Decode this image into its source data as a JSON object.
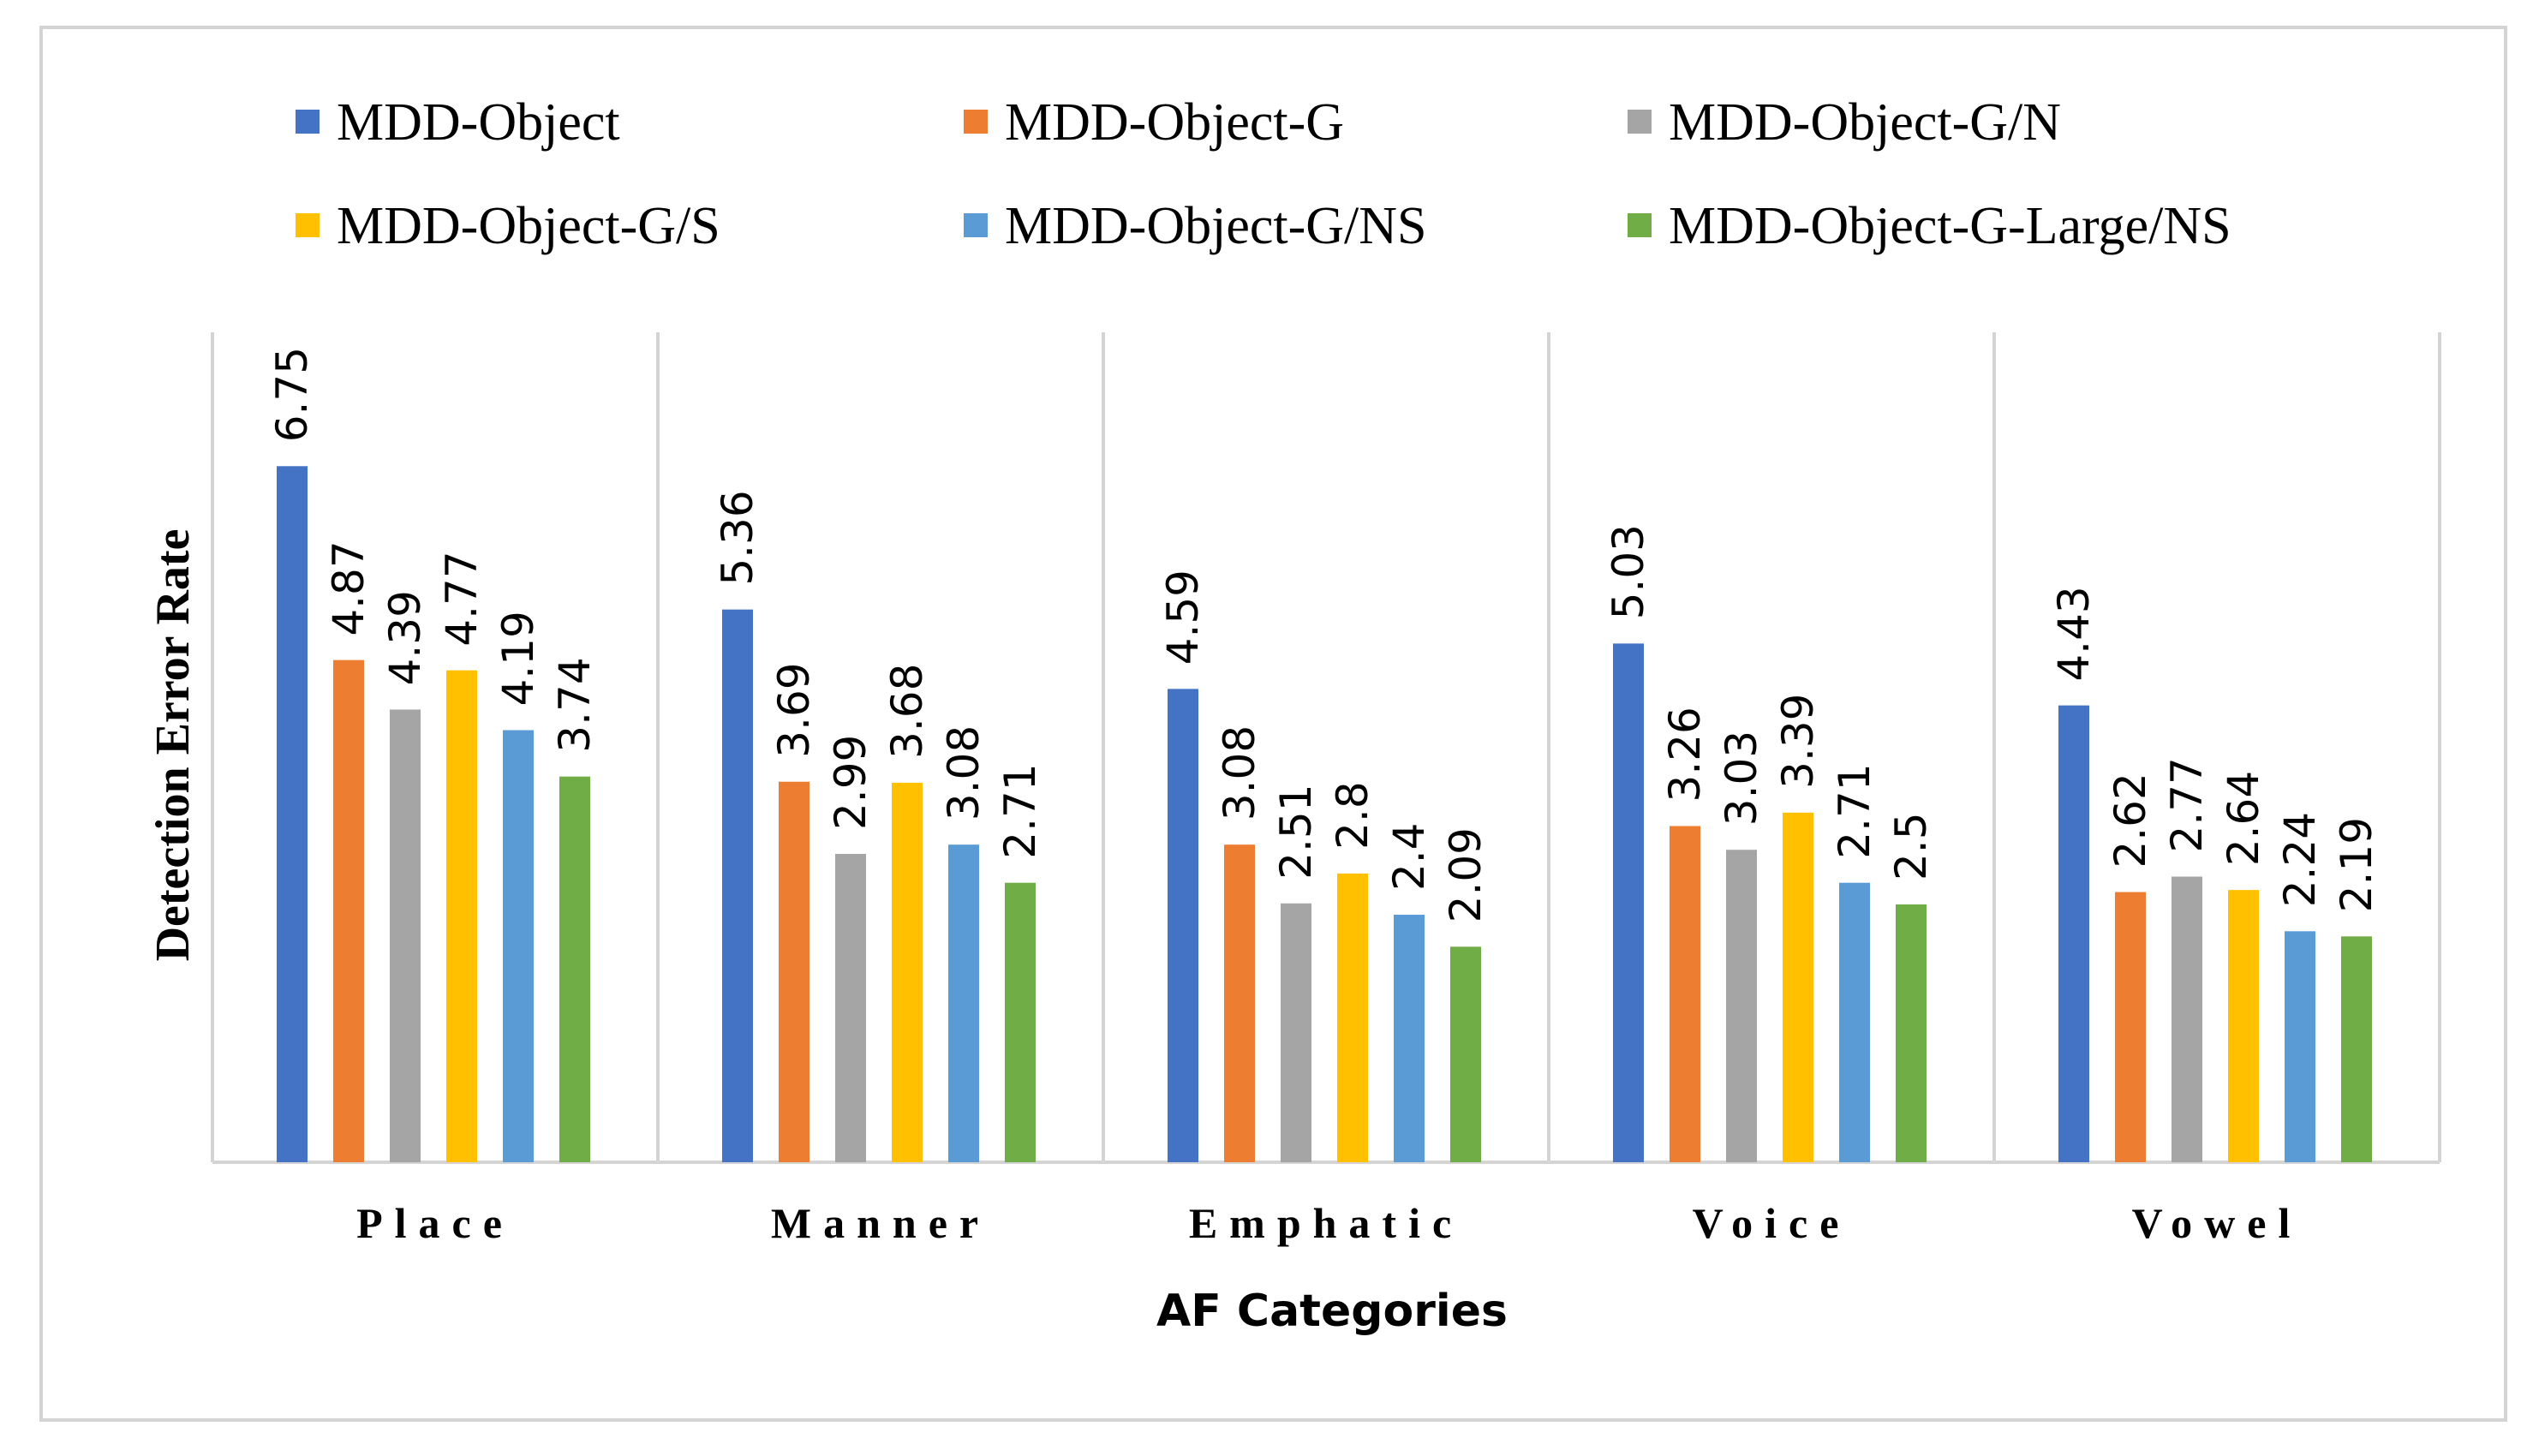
{
  "chart_data": {
    "type": "bar",
    "title": "",
    "xlabel": "AF Categories",
    "ylabel": "Detection Error Rate",
    "ylim": [
      0,
      8
    ],
    "grid": false,
    "legend_position": "top",
    "categories": [
      "Place",
      "Manner",
      "Emphatic",
      "Voice",
      "Vowel"
    ],
    "series": [
      {
        "name": "MDD-Object",
        "color": "#4472C4",
        "values": [
          6.75,
          5.36,
          4.59,
          5.03,
          4.43
        ]
      },
      {
        "name": "MDD-Object-G",
        "color": "#ED7D31",
        "values": [
          4.87,
          3.69,
          3.08,
          3.26,
          2.62
        ]
      },
      {
        "name": "MDD-Object-G/N",
        "color": "#A5A5A5",
        "values": [
          4.39,
          2.99,
          2.51,
          3.03,
          2.77
        ]
      },
      {
        "name": "MDD-Object-G/S",
        "color": "#FFC000",
        "values": [
          4.77,
          3.68,
          2.8,
          3.39,
          2.64
        ]
      },
      {
        "name": "MDD-Object-G/NS",
        "color": "#5B9BD5",
        "values": [
          4.19,
          3.08,
          2.4,
          2.71,
          2.24
        ]
      },
      {
        "name": "MDD-Object-G-Large/NS",
        "color": "#70AD47",
        "values": [
          3.74,
          2.71,
          2.09,
          2.5,
          2.19
        ]
      }
    ]
  }
}
